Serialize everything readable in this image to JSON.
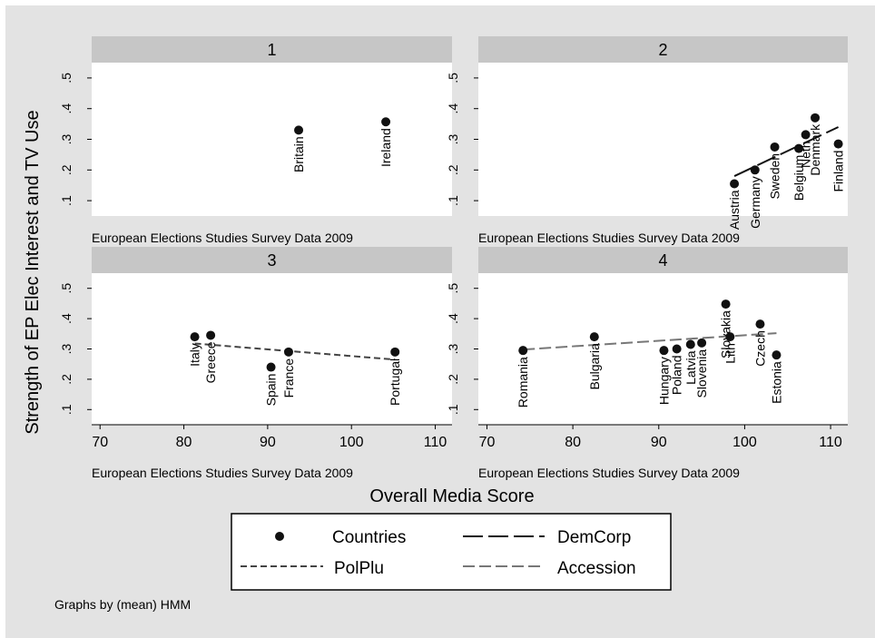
{
  "figure": {
    "y_axis_title": "Strength of EP Elec Interest and TV Use",
    "x_axis_title": "Overall Media Score",
    "note": "Graphs by (mean) HMM",
    "colors": {
      "outer_bg": "#e3e3e3",
      "strip_bg": "#c6c6c6",
      "plot_bg": "#ffffff",
      "points": "#111111",
      "legend_border": "#000000"
    }
  },
  "legend": {
    "placement": "bottom-center",
    "items": [
      {
        "label": "Countries",
        "symbol": "point"
      },
      {
        "label": "DemCorp",
        "symbol": "long-dash"
      },
      {
        "label": "PolPlu",
        "symbol": "short-dash"
      },
      {
        "label": "Accession",
        "symbol": "medium-dash"
      }
    ]
  },
  "chart_data": [
    {
      "type": "scatter",
      "panel": "1",
      "caption": "European Elections Studies Survey Data 2009",
      "xlim": [
        69,
        112
      ],
      "ylim": [
        0.05,
        0.55
      ],
      "x_ticks": [
        70,
        80,
        90,
        100,
        110
      ],
      "y_ticks": [
        ".1",
        ".2",
        ".3",
        ".4",
        ".5"
      ],
      "show_x_tick_labels": false,
      "points": [
        {
          "label": "Britain",
          "x": 93.7,
          "y": 0.33
        },
        {
          "label": "Ireland",
          "x": 104.1,
          "y": 0.357
        }
      ],
      "fit": null
    },
    {
      "type": "scatter",
      "panel": "2",
      "caption": "European Elections Studies Survey Data 2009",
      "xlim": [
        69,
        112
      ],
      "ylim": [
        0.05,
        0.55
      ],
      "x_ticks": [
        70,
        80,
        90,
        100,
        110
      ],
      "y_ticks": [
        ".1",
        ".2",
        ".3",
        ".4",
        ".5"
      ],
      "show_x_tick_labels": false,
      "points": [
        {
          "label": "Austria",
          "x": 98.8,
          "y": 0.155
        },
        {
          "label": "Germany",
          "x": 101.2,
          "y": 0.2
        },
        {
          "label": "Sweden",
          "x": 103.5,
          "y": 0.275
        },
        {
          "label": "Belgium",
          "x": 106.3,
          "y": 0.27
        },
        {
          "label": "Neth",
          "x": 107.1,
          "y": 0.315
        },
        {
          "label": "Denmark",
          "x": 108.2,
          "y": 0.37
        },
        {
          "label": "Finland",
          "x": 110.9,
          "y": 0.285
        }
      ],
      "fit": {
        "series": "DemCorp",
        "x": [
          98.8,
          110.9
        ],
        "y": [
          0.18,
          0.34
        ]
      }
    },
    {
      "type": "scatter",
      "panel": "3",
      "caption": "European Elections Studies Survey Data 2009",
      "xlim": [
        69,
        112
      ],
      "ylim": [
        0.05,
        0.55
      ],
      "x_ticks": [
        70,
        80,
        90,
        100,
        110
      ],
      "y_ticks": [
        ".1",
        ".2",
        ".3",
        ".4",
        ".5"
      ],
      "show_x_tick_labels": true,
      "points": [
        {
          "label": "Italy",
          "x": 81.3,
          "y": 0.34
        },
        {
          "label": "Greece",
          "x": 83.2,
          "y": 0.345
        },
        {
          "label": "Spain",
          "x": 90.4,
          "y": 0.24
        },
        {
          "label": "France",
          "x": 92.5,
          "y": 0.29
        },
        {
          "label": "Portugal",
          "x": 105.2,
          "y": 0.29
        }
      ],
      "fit": {
        "series": "PolPlu",
        "x": [
          81.3,
          105.2
        ],
        "y": [
          0.318,
          0.265
        ]
      }
    },
    {
      "type": "scatter",
      "panel": "4",
      "caption": "European Elections Studies Survey Data 2009",
      "xlim": [
        69,
        112
      ],
      "ylim": [
        0.05,
        0.55
      ],
      "x_ticks": [
        70,
        80,
        90,
        100,
        110
      ],
      "y_ticks": [
        ".1",
        ".2",
        ".3",
        ".4",
        ".5"
      ],
      "show_x_tick_labels": true,
      "points": [
        {
          "label": "Romania",
          "x": 74.2,
          "y": 0.295
        },
        {
          "label": "Bulgaria",
          "x": 82.5,
          "y": 0.34
        },
        {
          "label": "Hungary",
          "x": 90.6,
          "y": 0.295
        },
        {
          "label": "Poland",
          "x": 92.1,
          "y": 0.3
        },
        {
          "label": "Latvia",
          "x": 93.7,
          "y": 0.315
        },
        {
          "label": "Slovenia",
          "x": 95.0,
          "y": 0.32
        },
        {
          "label": "Slovakia",
          "x": 97.8,
          "y": 0.448
        },
        {
          "label": "Lith",
          "x": 98.3,
          "y": 0.34
        },
        {
          "label": "Czech",
          "x": 101.8,
          "y": 0.382
        },
        {
          "label": "Estonia",
          "x": 103.7,
          "y": 0.28
        }
      ],
      "fit": {
        "series": "Accession",
        "x": [
          74.2,
          103.7
        ],
        "y": [
          0.298,
          0.352
        ]
      }
    }
  ]
}
